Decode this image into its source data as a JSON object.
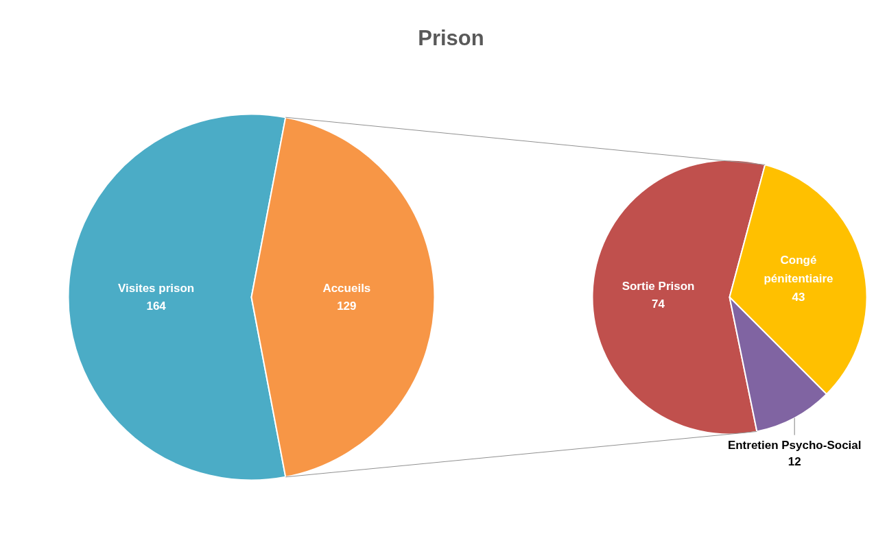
{
  "chart_data": [
    {
      "type": "pie",
      "title": "Prison",
      "categories": [
        "Visites prison",
        "Accueils"
      ],
      "values": [
        164,
        129
      ],
      "colors": [
        "#4bacc6",
        "#f79646"
      ],
      "data_labels": true
    },
    {
      "type": "pie",
      "categories": [
        "Sortie Prison",
        "Congé pénitentiaire",
        "Entretien Psycho-Social"
      ],
      "values": [
        74,
        43,
        12
      ],
      "colors": [
        "#c0504d",
        "#ffc000",
        "#8064a2"
      ],
      "data_labels": true
    }
  ]
}
